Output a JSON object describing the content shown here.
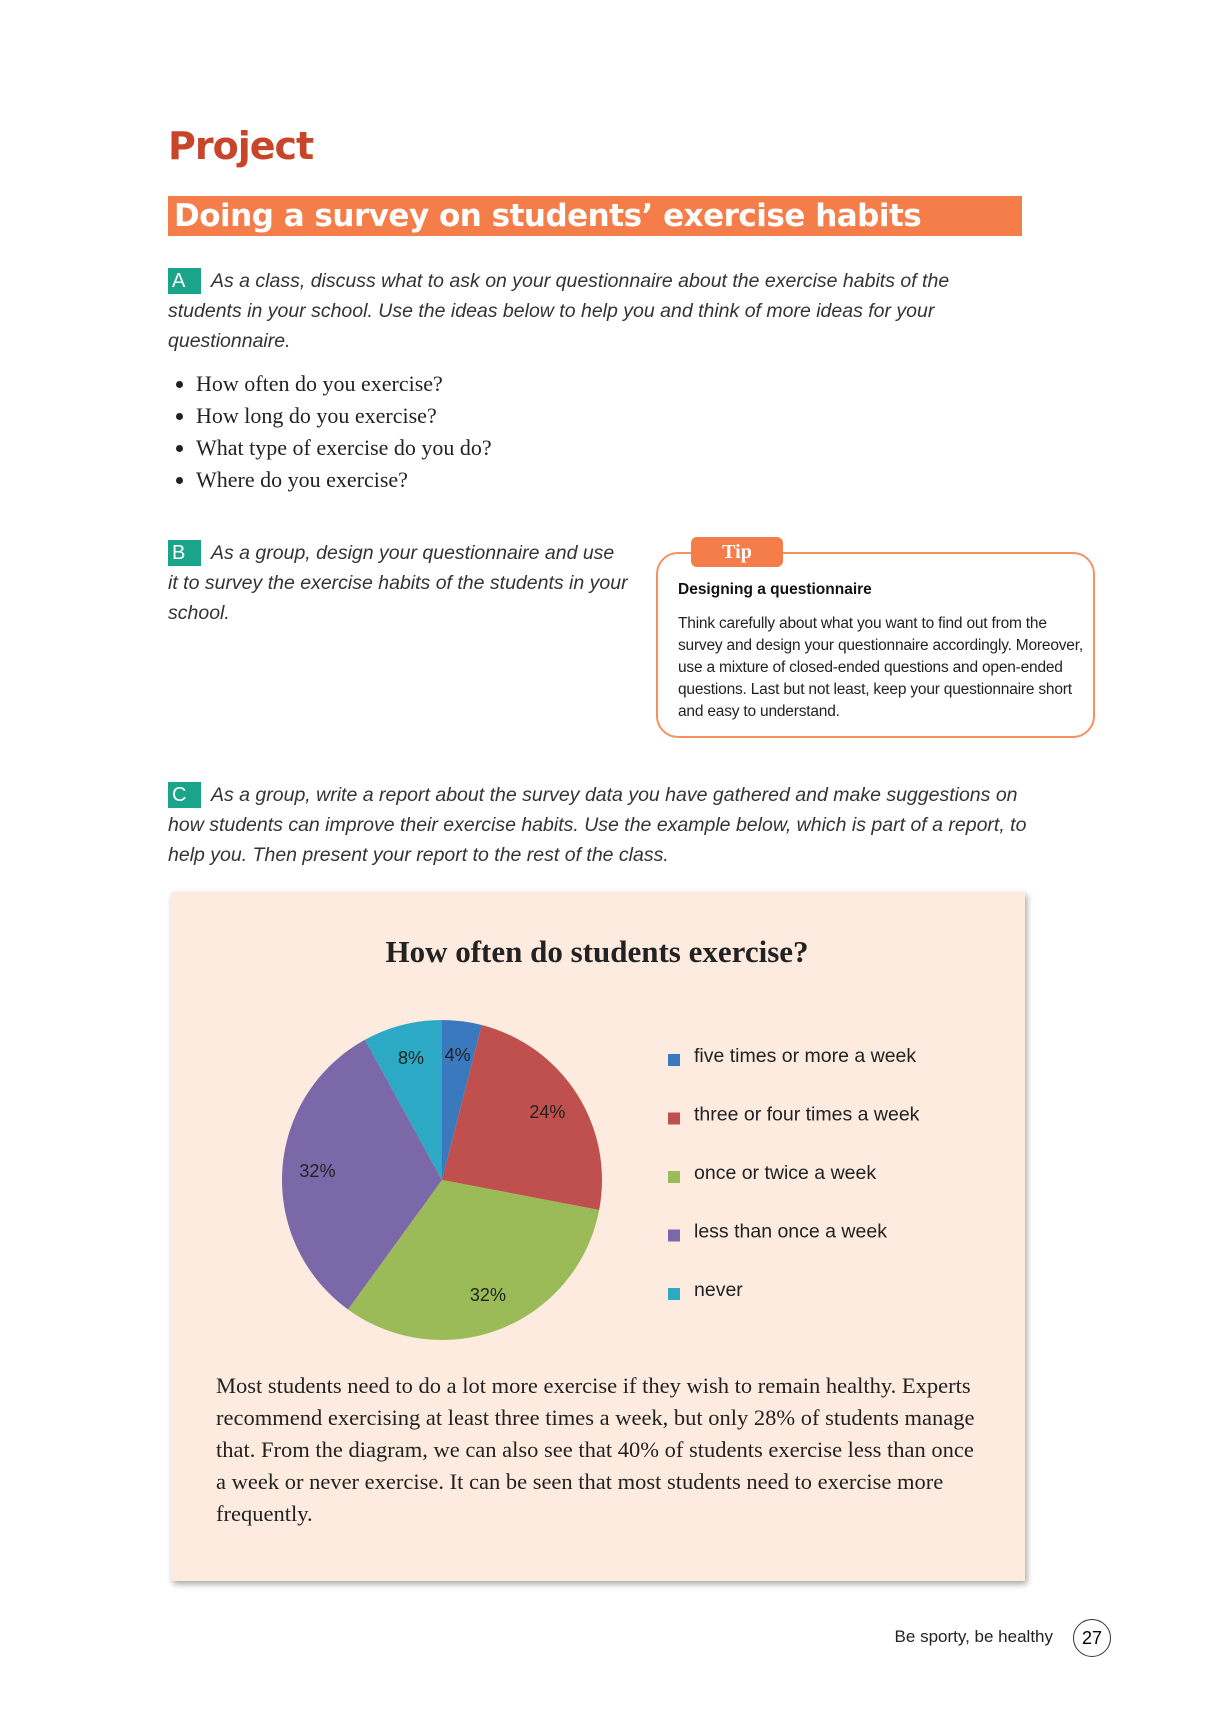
{
  "header": {
    "title": "Project",
    "subtitle": "Doing a survey on students’ exercise habits"
  },
  "section_a": {
    "label": "A",
    "text": "As a class, discuss what to ask on your questionnaire about the exercise habits of the students in your school. Use the ideas below to help you and think of more ideas for your questionnaire.",
    "bullets": [
      "How often do you exercise?",
      "How long do you exercise?",
      "What type of exercise do you do?",
      "Where do you exercise?"
    ]
  },
  "section_b": {
    "label": "B",
    "text": "As a group, design your questionnaire and use it to survey the exercise habits of the students in your school."
  },
  "tip": {
    "tab": "Tip",
    "heading": "Designing a questionnaire",
    "text": "Think carefully about what you want to find out from the survey and design your questionnaire accordingly. Moreover, use a mixture of closed-ended questions and open-ended questions. Last but not least, keep your questionnaire short and easy to understand."
  },
  "section_c": {
    "label": "C",
    "text": "As a group, write a report about the survey data you have gathered and make suggestions on how students can improve their exercise habits. Use the example below, which is part of a report, to help you. Then present your report to the rest of the class."
  },
  "chart_data": {
    "type": "pie",
    "title": "How often do students exercise?",
    "categories": [
      "five times or more a week",
      "three or four times a week",
      "once or twice a week",
      "less than once a week",
      "never"
    ],
    "values": [
      4,
      24,
      32,
      32,
      8
    ],
    "value_labels": [
      "4%",
      "24%",
      "32%",
      "32%",
      "8%"
    ],
    "colors": [
      "#3b79bf",
      "#c0504d",
      "#9bbb59",
      "#7b68a9",
      "#2ba9c5"
    ]
  },
  "report": {
    "text": "Most students need to do a lot more exercise if they wish to remain healthy. Experts recommend exercising at least three times a week, but only 28% of students manage that. From the diagram, we can also see that 40% of students exercise less than once a week or never exercise. It can be seen that most students need to exercise more frequently."
  },
  "footer": {
    "text": "Be sporty, be healthy",
    "page": "27"
  }
}
